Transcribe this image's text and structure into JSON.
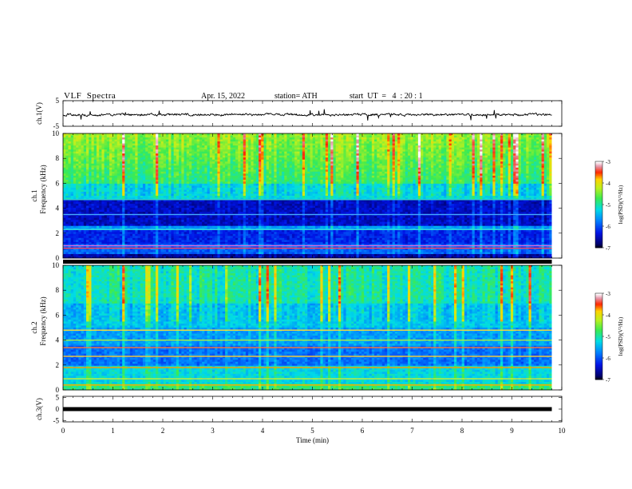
{
  "header": {
    "title": "VLF  Spectra",
    "date": "Apr. 15, 2022",
    "station": "station= ATH",
    "start": "start  UT  =   4  : 20 : 1"
  },
  "chart_data": [
    {
      "type": "line",
      "panel": "ch1-waveform",
      "ylabel": "ch.1(V)",
      "ylim": [
        -5,
        5
      ],
      "yticks": [
        "5",
        "-5"
      ],
      "xlim": [
        0,
        10
      ],
      "series": [
        {
          "values_note_count": 0,
          "x": [
            0,
            1,
            2,
            3,
            4,
            5,
            6,
            7,
            8,
            9,
            9.8
          ],
          "values": [
            0,
            -0.1,
            0.1,
            -0.2,
            0.2,
            0,
            0.1,
            -0.1,
            0.1,
            0,
            -0.1
          ]
        }
      ]
    },
    {
      "type": "heatmap",
      "panel": "ch1-spectrogram",
      "ylabel": "ch.1\nFrequency (kHz)",
      "ylabel_line1": "ch.1",
      "ylabel_line2": "Frequency (kHz)",
      "ylim": [
        0,
        10
      ],
      "yticks": [
        "0",
        "2",
        "4",
        "6",
        "8",
        "10"
      ],
      "xlim": [
        0,
        10
      ],
      "colorbar": {
        "label": "log(PSD)(V²/Hz)",
        "range": [
          -7,
          -3
        ],
        "ticks": [
          "-3",
          "-4",
          "-5",
          "-6",
          "-7"
        ]
      }
    },
    {
      "type": "heatmap",
      "panel": "ch2-spectrogram",
      "ylabel_line1": "ch.2",
      "ylabel_line2": "Frequency (kHz)",
      "ylim": [
        0,
        10
      ],
      "yticks": [
        "0",
        "2",
        "4",
        "6",
        "8",
        "10"
      ],
      "xlim": [
        0,
        10
      ],
      "colorbar": {
        "label": "log(PSD)(V²/Hz)",
        "range": [
          -7,
          -3
        ],
        "ticks": [
          "-3",
          "-4",
          "-5",
          "-6",
          "-7"
        ]
      }
    },
    {
      "type": "line",
      "panel": "ch3-waveform",
      "ylabel": "ch.3(V)",
      "ylim": [
        -5,
        5
      ],
      "yticks": [
        "5",
        "0",
        "-5"
      ],
      "xlim": [
        0,
        10
      ],
      "series": [
        {
          "x": [
            0,
            9.8
          ],
          "values": [
            0,
            0
          ]
        }
      ]
    }
  ],
  "xaxis": {
    "label": "Time  (min)",
    "ticks": [
      "0",
      "1",
      "2",
      "3",
      "4",
      "5",
      "6",
      "7",
      "8",
      "9",
      "10"
    ]
  }
}
